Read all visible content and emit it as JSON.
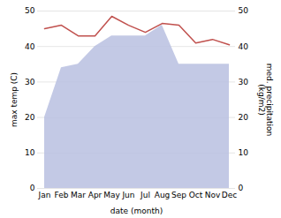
{
  "chart_data": {
    "type": "line",
    "categories": [
      "Jan",
      "Feb",
      "Mar",
      "Apr",
      "May",
      "Jun",
      "Jul",
      "Aug",
      "Sep",
      "Oct",
      "Nov",
      "Dec"
    ],
    "xlabel": "date (month)",
    "ylabel": "max temp (C)",
    "y2label": "med. precipitation\n(kg/m2)",
    "ylim": [
      0,
      50
    ],
    "yticks": [
      0,
      10,
      20,
      30,
      40,
      50
    ],
    "y2lim": [
      0,
      50
    ],
    "y2ticks": [
      0,
      10,
      20,
      30,
      40,
      50
    ],
    "grid": true,
    "series": [
      {
        "type": "area",
        "color": "#b8c0e0",
        "axis": "y2",
        "values": [
          20,
          34,
          35,
          40,
          43,
          43,
          43,
          46,
          35,
          35,
          35,
          35
        ]
      },
      {
        "type": "line",
        "color": "#c0504d",
        "values": [
          45,
          46,
          43,
          43,
          48.5,
          46,
          44,
          46.5,
          46,
          41,
          42,
          40.5
        ]
      }
    ]
  }
}
